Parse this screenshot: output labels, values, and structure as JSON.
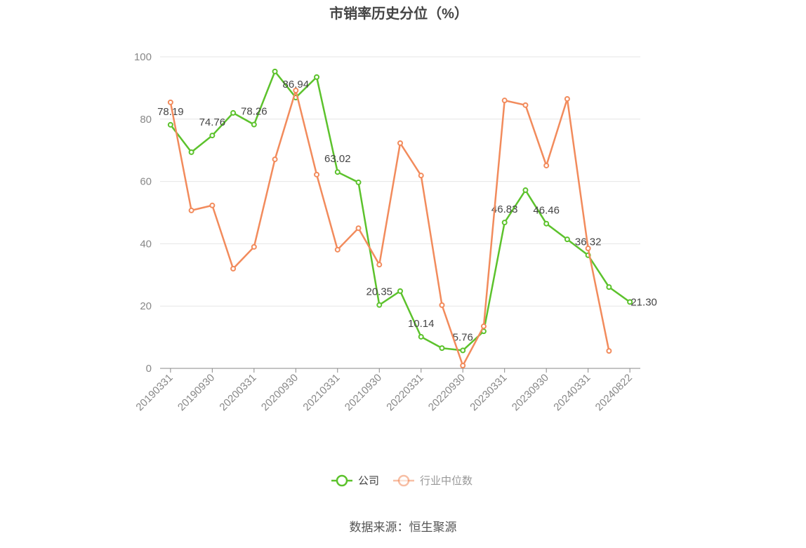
{
  "chart_data": {
    "type": "line",
    "title": "市销率历史分位（%）",
    "categories": [
      "20190331",
      null,
      "20190930",
      null,
      "20200331",
      null,
      "20200930",
      null,
      "20210331",
      null,
      "20210930",
      null,
      "20220331",
      null,
      "20220930",
      null,
      "20230331",
      null,
      "20230930",
      null,
      "20240331",
      null,
      "20240822"
    ],
    "series": [
      {
        "name": "公司",
        "color": "#5cc22c",
        "values": [
          78.19,
          69.4,
          74.76,
          82.0,
          78.26,
          95.3,
          86.94,
          93.5,
          63.02,
          59.7,
          20.35,
          24.8,
          10.14,
          6.5,
          5.76,
          11.9,
          46.83,
          57.2,
          46.46,
          41.4,
          36.32,
          26.1,
          21.3
        ],
        "value_labels": [
          "78.19",
          null,
          "74.76",
          null,
          "78.26",
          null,
          "86.94",
          null,
          "63.02",
          null,
          "20.35",
          null,
          "10.14",
          null,
          "5.76",
          null,
          "46.83",
          null,
          "46.46",
          null,
          "36.32",
          null,
          "21.30"
        ]
      },
      {
        "name": "行业中位数",
        "color": "#f28b5c",
        "values": [
          85.4,
          50.7,
          52.3,
          32.0,
          39.0,
          67.1,
          89.2,
          62.2,
          38.1,
          45.0,
          33.3,
          72.3,
          61.9,
          20.3,
          0.9,
          13.5,
          86.0,
          84.5,
          65.1,
          86.5,
          38.5,
          5.6,
          null
        ]
      }
    ],
    "ylim": [
      0,
      100
    ],
    "yticks": [
      0,
      20,
      40,
      60,
      80,
      100
    ],
    "grid": true,
    "legend": "bottom",
    "source": "数据来源：恒生聚源"
  }
}
